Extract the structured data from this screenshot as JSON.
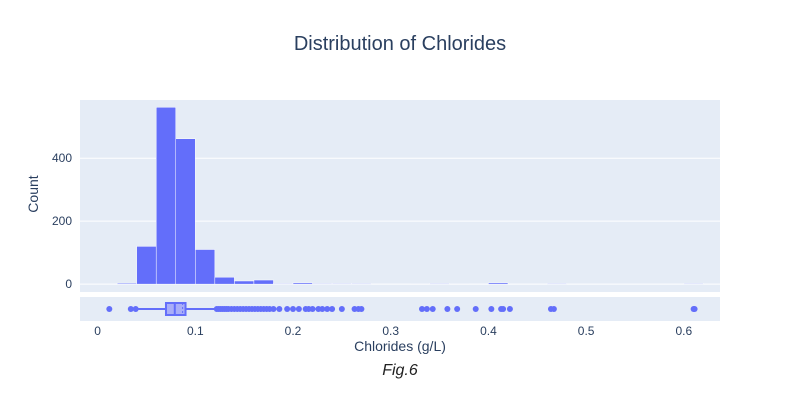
{
  "chart_data": {
    "type": "bar",
    "title": "Distribution of Chlorides",
    "xlabel": "Chlorides (g/L)",
    "ylabel": "Count",
    "caption": "Fig.6",
    "x_range": [
      -0.018,
      0.637
    ],
    "y_range": [
      -25,
      585
    ],
    "x_ticks": [
      {
        "value": 0,
        "label": "0"
      },
      {
        "value": 0.1,
        "label": "0.1"
      },
      {
        "value": 0.2,
        "label": "0.2"
      },
      {
        "value": 0.3,
        "label": "0.3"
      },
      {
        "value": 0.4,
        "label": "0.4"
      },
      {
        "value": 0.5,
        "label": "0.5"
      },
      {
        "value": 0.6,
        "label": "0.6"
      }
    ],
    "y_ticks": [
      {
        "value": 0,
        "label": "0"
      },
      {
        "value": 200,
        "label": "200"
      },
      {
        "value": 400,
        "label": "400"
      }
    ],
    "bin_width": 0.02,
    "bins": [
      {
        "x0": 0.02,
        "count": 3
      },
      {
        "x0": 0.04,
        "count": 120
      },
      {
        "x0": 0.06,
        "count": 562
      },
      {
        "x0": 0.08,
        "count": 462
      },
      {
        "x0": 0.1,
        "count": 110
      },
      {
        "x0": 0.12,
        "count": 22
      },
      {
        "x0": 0.14,
        "count": 10
      },
      {
        "x0": 0.16,
        "count": 13
      },
      {
        "x0": 0.18,
        "count": 2
      },
      {
        "x0": 0.2,
        "count": 4
      },
      {
        "x0": 0.22,
        "count": 2
      },
      {
        "x0": 0.24,
        "count": 2
      },
      {
        "x0": 0.26,
        "count": 2
      },
      {
        "x0": 0.32,
        "count": 1
      },
      {
        "x0": 0.34,
        "count": 2
      },
      {
        "x0": 0.36,
        "count": 1
      },
      {
        "x0": 0.4,
        "count": 4
      },
      {
        "x0": 0.46,
        "count": 2
      },
      {
        "x0": 0.6,
        "count": 2
      }
    ],
    "box": {
      "lower_fence": 0.038,
      "q1": 0.07,
      "median": 0.079,
      "q3": 0.09,
      "upper_fence": 0.12,
      "mean": 0.087
    },
    "outliers": [
      0.012,
      0.034,
      0.039,
      0.122,
      0.124,
      0.126,
      0.128,
      0.13,
      0.132,
      0.134,
      0.137,
      0.14,
      0.143,
      0.146,
      0.149,
      0.152,
      0.155,
      0.158,
      0.161,
      0.164,
      0.167,
      0.17,
      0.173,
      0.176,
      0.18,
      0.186,
      0.194,
      0.2,
      0.206,
      0.213,
      0.216,
      0.22,
      0.226,
      0.23,
      0.235,
      0.24,
      0.25,
      0.263,
      0.267,
      0.27,
      0.332,
      0.337,
      0.343,
      0.358,
      0.368,
      0.387,
      0.403,
      0.413,
      0.415,
      0.422,
      0.464,
      0.467,
      0.61,
      0.611
    ],
    "colors": {
      "bar_fill": "#636efa",
      "bar_stroke": "#ffffff",
      "plot_bg": "#e5ecf6",
      "grid": "#ffffff",
      "box_fill": "#a9aef8"
    },
    "grid": true
  }
}
